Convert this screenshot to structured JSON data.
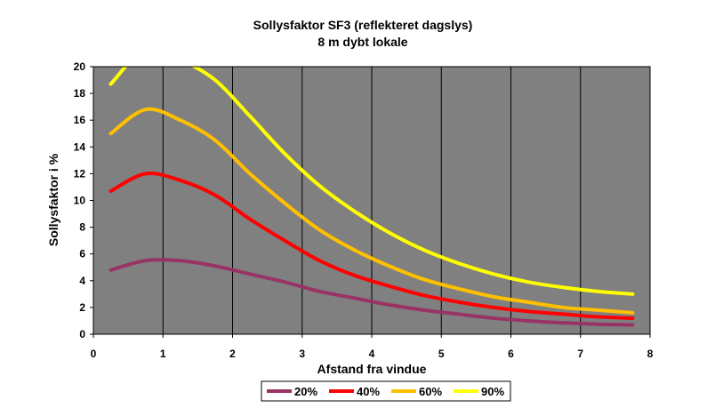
{
  "chart_data": {
    "type": "line",
    "title": "Sollysfaktor SF3 (reflekteret dagslys)",
    "subtitle": "8 m dybt lokale",
    "xlabel": "Afstand fra vindue",
    "ylabel": "Sollysfaktor i %",
    "xlim": [
      0,
      8
    ],
    "ylim": [
      0,
      20
    ],
    "xticks": [
      "0",
      "1",
      "2",
      "3",
      "4",
      "5",
      "6",
      "7",
      "8"
    ],
    "yticks": [
      "0",
      "2",
      "4",
      "6",
      "8",
      "10",
      "12",
      "14",
      "16",
      "18",
      "20"
    ],
    "grid": "vertical",
    "legend_position": "bottom",
    "x": [
      0.25,
      0.75,
      1.25,
      1.75,
      2.25,
      2.75,
      3.25,
      3.75,
      4.25,
      4.75,
      5.25,
      5.75,
      6.25,
      6.75,
      7.25,
      7.75
    ],
    "series": [
      {
        "name": "20%",
        "color": "#993366",
        "values": [
          4.8,
          5.5,
          5.5,
          5.1,
          4.5,
          3.9,
          3.2,
          2.7,
          2.2,
          1.8,
          1.5,
          1.2,
          1.0,
          0.85,
          0.75,
          0.7
        ]
      },
      {
        "name": "40%",
        "color": "#ff0000",
        "values": [
          10.7,
          12.0,
          11.5,
          10.4,
          8.6,
          7.0,
          5.5,
          4.4,
          3.6,
          2.9,
          2.4,
          2.0,
          1.7,
          1.5,
          1.3,
          1.2
        ]
      },
      {
        "name": "60%",
        "color": "#ffc000",
        "values": [
          15.0,
          16.8,
          16.0,
          14.5,
          12.0,
          9.8,
          7.8,
          6.3,
          5.1,
          4.1,
          3.4,
          2.8,
          2.4,
          2.0,
          1.8,
          1.6
        ]
      },
      {
        "name": "90%",
        "color": "#ffff00",
        "values": [
          18.7,
          21.3,
          20.5,
          19.0,
          16.3,
          13.5,
          11.1,
          9.2,
          7.6,
          6.3,
          5.3,
          4.5,
          3.9,
          3.5,
          3.2,
          3.0
        ]
      }
    ]
  }
}
